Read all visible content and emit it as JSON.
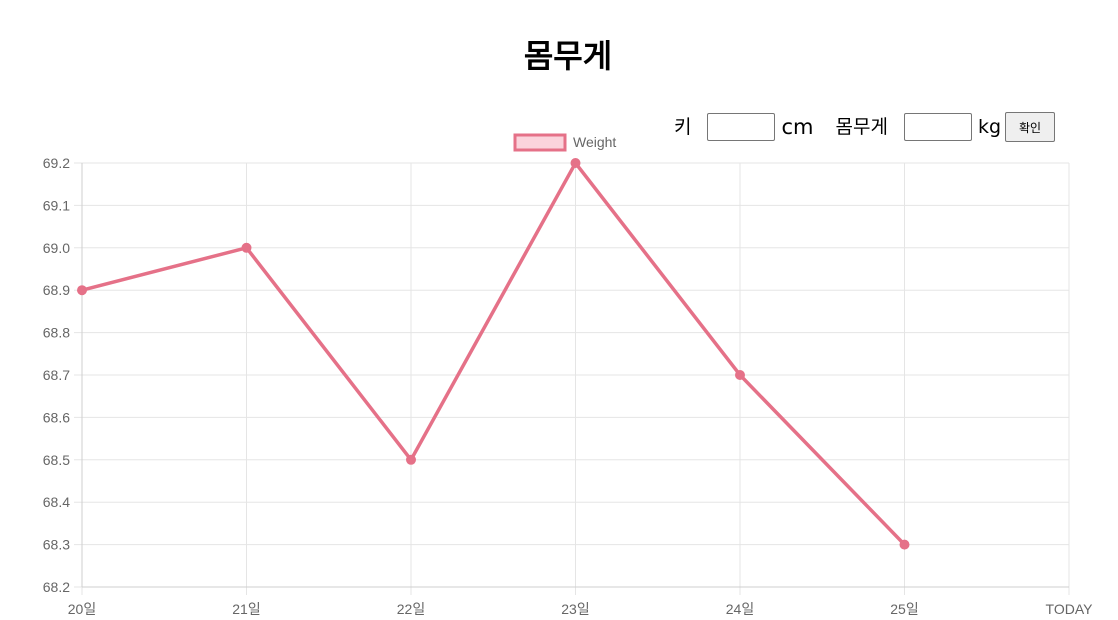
{
  "page": {
    "title": "몸무게"
  },
  "form": {
    "height_label": "키",
    "height_value": "",
    "height_unit": "cm",
    "weight_label": "몸무게",
    "weight_value": "",
    "weight_unit": "kg",
    "confirm_label": "확인"
  },
  "colors": {
    "line": "#e57188",
    "legend_fill": "#fbd3dc",
    "grid": "#e5e5e5",
    "tick_text": "#666666"
  },
  "chart_data": {
    "type": "line",
    "categories": [
      "20일",
      "21일",
      "22일",
      "23일",
      "24일",
      "25일",
      "TODAY"
    ],
    "series": [
      {
        "name": "Weight",
        "values": [
          68.9,
          69.0,
          68.5,
          69.2,
          68.7,
          68.3,
          null
        ]
      }
    ],
    "y_ticks": [
      "69.2",
      "69.1",
      "69.0",
      "68.9",
      "68.8",
      "68.7",
      "68.6",
      "68.5",
      "68.4",
      "68.3",
      "68.2"
    ],
    "ylim": [
      68.2,
      69.2
    ],
    "grid": true,
    "legend_position": "top-center"
  }
}
